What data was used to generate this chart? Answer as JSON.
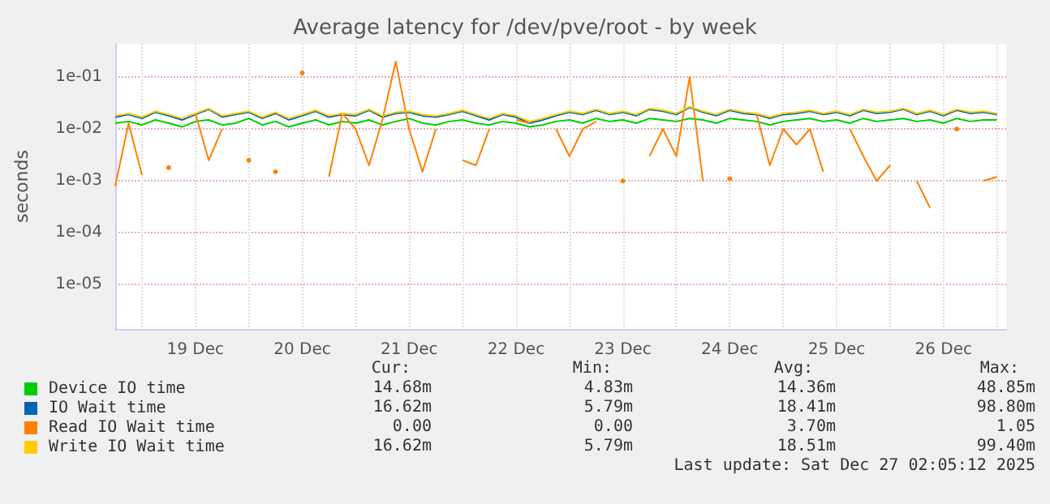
{
  "chart_data": {
    "type": "line",
    "title": "Average latency for /dev/pve/root - by week",
    "ylabel": "seconds",
    "log": true,
    "grid": true,
    "legend": "bottom",
    "marker": "none",
    "line_style": "solid",
    "xlim": [
      "2025-12-18T18:00",
      "2025-12-27T02:05"
    ],
    "xticks": [
      {
        "value": "2025-12-19T00:00",
        "label": null
      },
      {
        "value": "2025-12-19T12:00",
        "label": "19 Dec"
      },
      {
        "value": "2025-12-20T00:00",
        "label": null
      },
      {
        "value": "2025-12-20T12:00",
        "label": "20 Dec"
      },
      {
        "value": "2025-12-21T00:00",
        "label": null
      },
      {
        "value": "2025-12-21T12:00",
        "label": "21 Dec"
      },
      {
        "value": "2025-12-22T00:00",
        "label": null
      },
      {
        "value": "2025-12-22T12:00",
        "label": "22 Dec"
      },
      {
        "value": "2025-12-23T00:00",
        "label": null
      },
      {
        "value": "2025-12-23T12:00",
        "label": "23 Dec"
      },
      {
        "value": "2025-12-24T00:00",
        "label": null
      },
      {
        "value": "2025-12-24T12:00",
        "label": "24 Dec"
      },
      {
        "value": "2025-12-25T00:00",
        "label": null
      },
      {
        "value": "2025-12-25T12:00",
        "label": "25 Dec"
      },
      {
        "value": "2025-12-26T00:00",
        "label": null
      },
      {
        "value": "2025-12-26T12:00",
        "label": "26 Dec"
      },
      {
        "value": "2025-12-27T00:00",
        "label": null
      }
    ],
    "ylim": [
      1.4e-06,
      0.44
    ],
    "yticks": [
      {
        "value": 1e-05,
        "label": "1e-05"
      },
      {
        "value": 0.0001,
        "label": "1e-04"
      },
      {
        "value": 0.001,
        "label": "1e-03"
      },
      {
        "value": 0.01,
        "label": "1e-02"
      },
      {
        "value": 0.1,
        "label": "1e-01"
      }
    ],
    "x": [
      "2025-12-18T18:00",
      "2025-12-18T21:00",
      "2025-12-19T00:00",
      "2025-12-19T03:00",
      "2025-12-19T06:00",
      "2025-12-19T09:00",
      "2025-12-19T12:00",
      "2025-12-19T15:00",
      "2025-12-19T18:00",
      "2025-12-19T21:00",
      "2025-12-20T00:00",
      "2025-12-20T03:00",
      "2025-12-20T06:00",
      "2025-12-20T09:00",
      "2025-12-20T12:00",
      "2025-12-20T15:00",
      "2025-12-20T18:00",
      "2025-12-20T21:00",
      "2025-12-21T00:00",
      "2025-12-21T03:00",
      "2025-12-21T06:00",
      "2025-12-21T09:00",
      "2025-12-21T12:00",
      "2025-12-21T15:00",
      "2025-12-21T18:00",
      "2025-12-21T21:00",
      "2025-12-22T00:00",
      "2025-12-22T03:00",
      "2025-12-22T06:00",
      "2025-12-22T09:00",
      "2025-12-22T12:00",
      "2025-12-22T15:00",
      "2025-12-22T18:00",
      "2025-12-22T21:00",
      "2025-12-23T00:00",
      "2025-12-23T03:00",
      "2025-12-23T06:00",
      "2025-12-23T09:00",
      "2025-12-23T12:00",
      "2025-12-23T15:00",
      "2025-12-23T18:00",
      "2025-12-23T21:00",
      "2025-12-24T00:00",
      "2025-12-24T03:00",
      "2025-12-24T06:00",
      "2025-12-24T09:00",
      "2025-12-24T12:00",
      "2025-12-24T15:00",
      "2025-12-24T18:00",
      "2025-12-24T21:00",
      "2025-12-25T00:00",
      "2025-12-25T03:00",
      "2025-12-25T06:00",
      "2025-12-25T09:00",
      "2025-12-25T12:00",
      "2025-12-25T15:00",
      "2025-12-25T18:00",
      "2025-12-25T21:00",
      "2025-12-26T00:00",
      "2025-12-26T03:00",
      "2025-12-26T06:00",
      "2025-12-26T09:00",
      "2025-12-26T12:00",
      "2025-12-26T15:00",
      "2025-12-26T18:00",
      "2025-12-26T21:00",
      "2025-12-27T00:00"
    ],
    "series": [
      {
        "name": "Device IO time",
        "color": "#00cc00",
        "values": [
          0.013,
          0.014,
          0.012,
          0.015,
          0.013,
          0.011,
          0.014,
          0.015,
          0.012,
          0.013,
          0.016,
          0.012,
          0.014,
          0.011,
          0.013,
          0.015,
          0.012,
          0.014,
          0.013,
          0.015,
          0.012,
          0.014,
          0.016,
          0.013,
          0.012,
          0.014,
          0.015,
          0.013,
          0.012,
          0.014,
          0.013,
          0.011,
          0.012,
          0.014,
          0.015,
          0.013,
          0.016,
          0.014,
          0.015,
          0.013,
          0.016,
          0.015,
          0.014,
          0.016,
          0.015,
          0.013,
          0.016,
          0.015,
          0.014,
          0.012,
          0.014,
          0.015,
          0.016,
          0.014,
          0.015,
          0.013,
          0.016,
          0.014,
          0.015,
          0.016,
          0.014,
          0.015,
          0.013,
          0.016,
          0.014,
          0.015,
          0.015
        ]
      },
      {
        "name": "IO Wait time",
        "color": "#0066b3",
        "values": [
          0.017,
          0.019,
          0.016,
          0.021,
          0.018,
          0.015,
          0.019,
          0.024,
          0.017,
          0.019,
          0.021,
          0.016,
          0.02,
          0.015,
          0.018,
          0.022,
          0.017,
          0.019,
          0.018,
          0.023,
          0.017,
          0.02,
          0.021,
          0.018,
          0.017,
          0.019,
          0.022,
          0.018,
          0.015,
          0.019,
          0.017,
          0.013,
          0.015,
          0.018,
          0.021,
          0.019,
          0.023,
          0.019,
          0.021,
          0.018,
          0.024,
          0.022,
          0.019,
          0.026,
          0.021,
          0.018,
          0.023,
          0.02,
          0.019,
          0.016,
          0.019,
          0.02,
          0.022,
          0.019,
          0.021,
          0.018,
          0.023,
          0.02,
          0.021,
          0.024,
          0.019,
          0.022,
          0.018,
          0.023,
          0.02,
          0.021,
          0.019
        ]
      },
      {
        "name": "Read IO Wait time",
        "color": "#ff8000",
        "values": [
          0.0008,
          0.013,
          0.0013,
          null,
          0.0018,
          null,
          0.02,
          0.0025,
          0.01,
          null,
          0.0025,
          null,
          0.0015,
          null,
          0.12,
          null,
          0.0012,
          0.02,
          0.01,
          0.002,
          0.015,
          0.2,
          0.01,
          0.0015,
          0.01,
          null,
          0.0025,
          0.002,
          0.01,
          null,
          0.015,
          0.013,
          null,
          0.01,
          0.003,
          0.01,
          0.014,
          null,
          0.001,
          null,
          0.003,
          0.01,
          0.003,
          0.1,
          0.001,
          null,
          0.0011,
          null,
          0.02,
          0.002,
          0.01,
          0.005,
          0.01,
          0.0015,
          null,
          0.01,
          0.003,
          0.001,
          0.002,
          null,
          0.001,
          0.0003,
          null,
          0.01,
          null,
          0.001,
          0.0012
        ]
      },
      {
        "name": "Write IO Wait time",
        "color": "#ffcc00",
        "values": [
          0.018,
          0.02,
          0.017,
          0.022,
          0.019,
          0.016,
          0.02,
          0.025,
          0.018,
          0.02,
          0.022,
          0.017,
          0.021,
          0.016,
          0.019,
          0.023,
          0.018,
          0.02,
          0.019,
          0.024,
          0.018,
          0.021,
          0.022,
          0.019,
          0.018,
          0.02,
          0.023,
          0.019,
          0.016,
          0.02,
          0.018,
          0.014,
          0.016,
          0.019,
          0.022,
          0.02,
          0.024,
          0.02,
          0.022,
          0.019,
          0.025,
          0.023,
          0.02,
          0.027,
          0.022,
          0.019,
          0.024,
          0.021,
          0.02,
          0.017,
          0.02,
          0.021,
          0.023,
          0.02,
          0.022,
          0.019,
          0.024,
          0.021,
          0.022,
          0.025,
          0.02,
          0.023,
          0.019,
          0.024,
          0.021,
          0.022,
          0.02
        ]
      }
    ],
    "annotations": [
      "Cur:",
      "Min:",
      "Avg:",
      "Max:",
      "14.68m",
      "4.83m",
      "14.36m",
      "48.85m",
      "16.62m",
      "5.79m",
      "18.41m",
      "98.80m",
      "0.00",
      "0.00",
      "3.70m",
      "1.05",
      "16.62m",
      "5.79m",
      "18.51m",
      "99.40m",
      "Last update: Sat Dec 27 02:05:12 2025"
    ]
  }
}
